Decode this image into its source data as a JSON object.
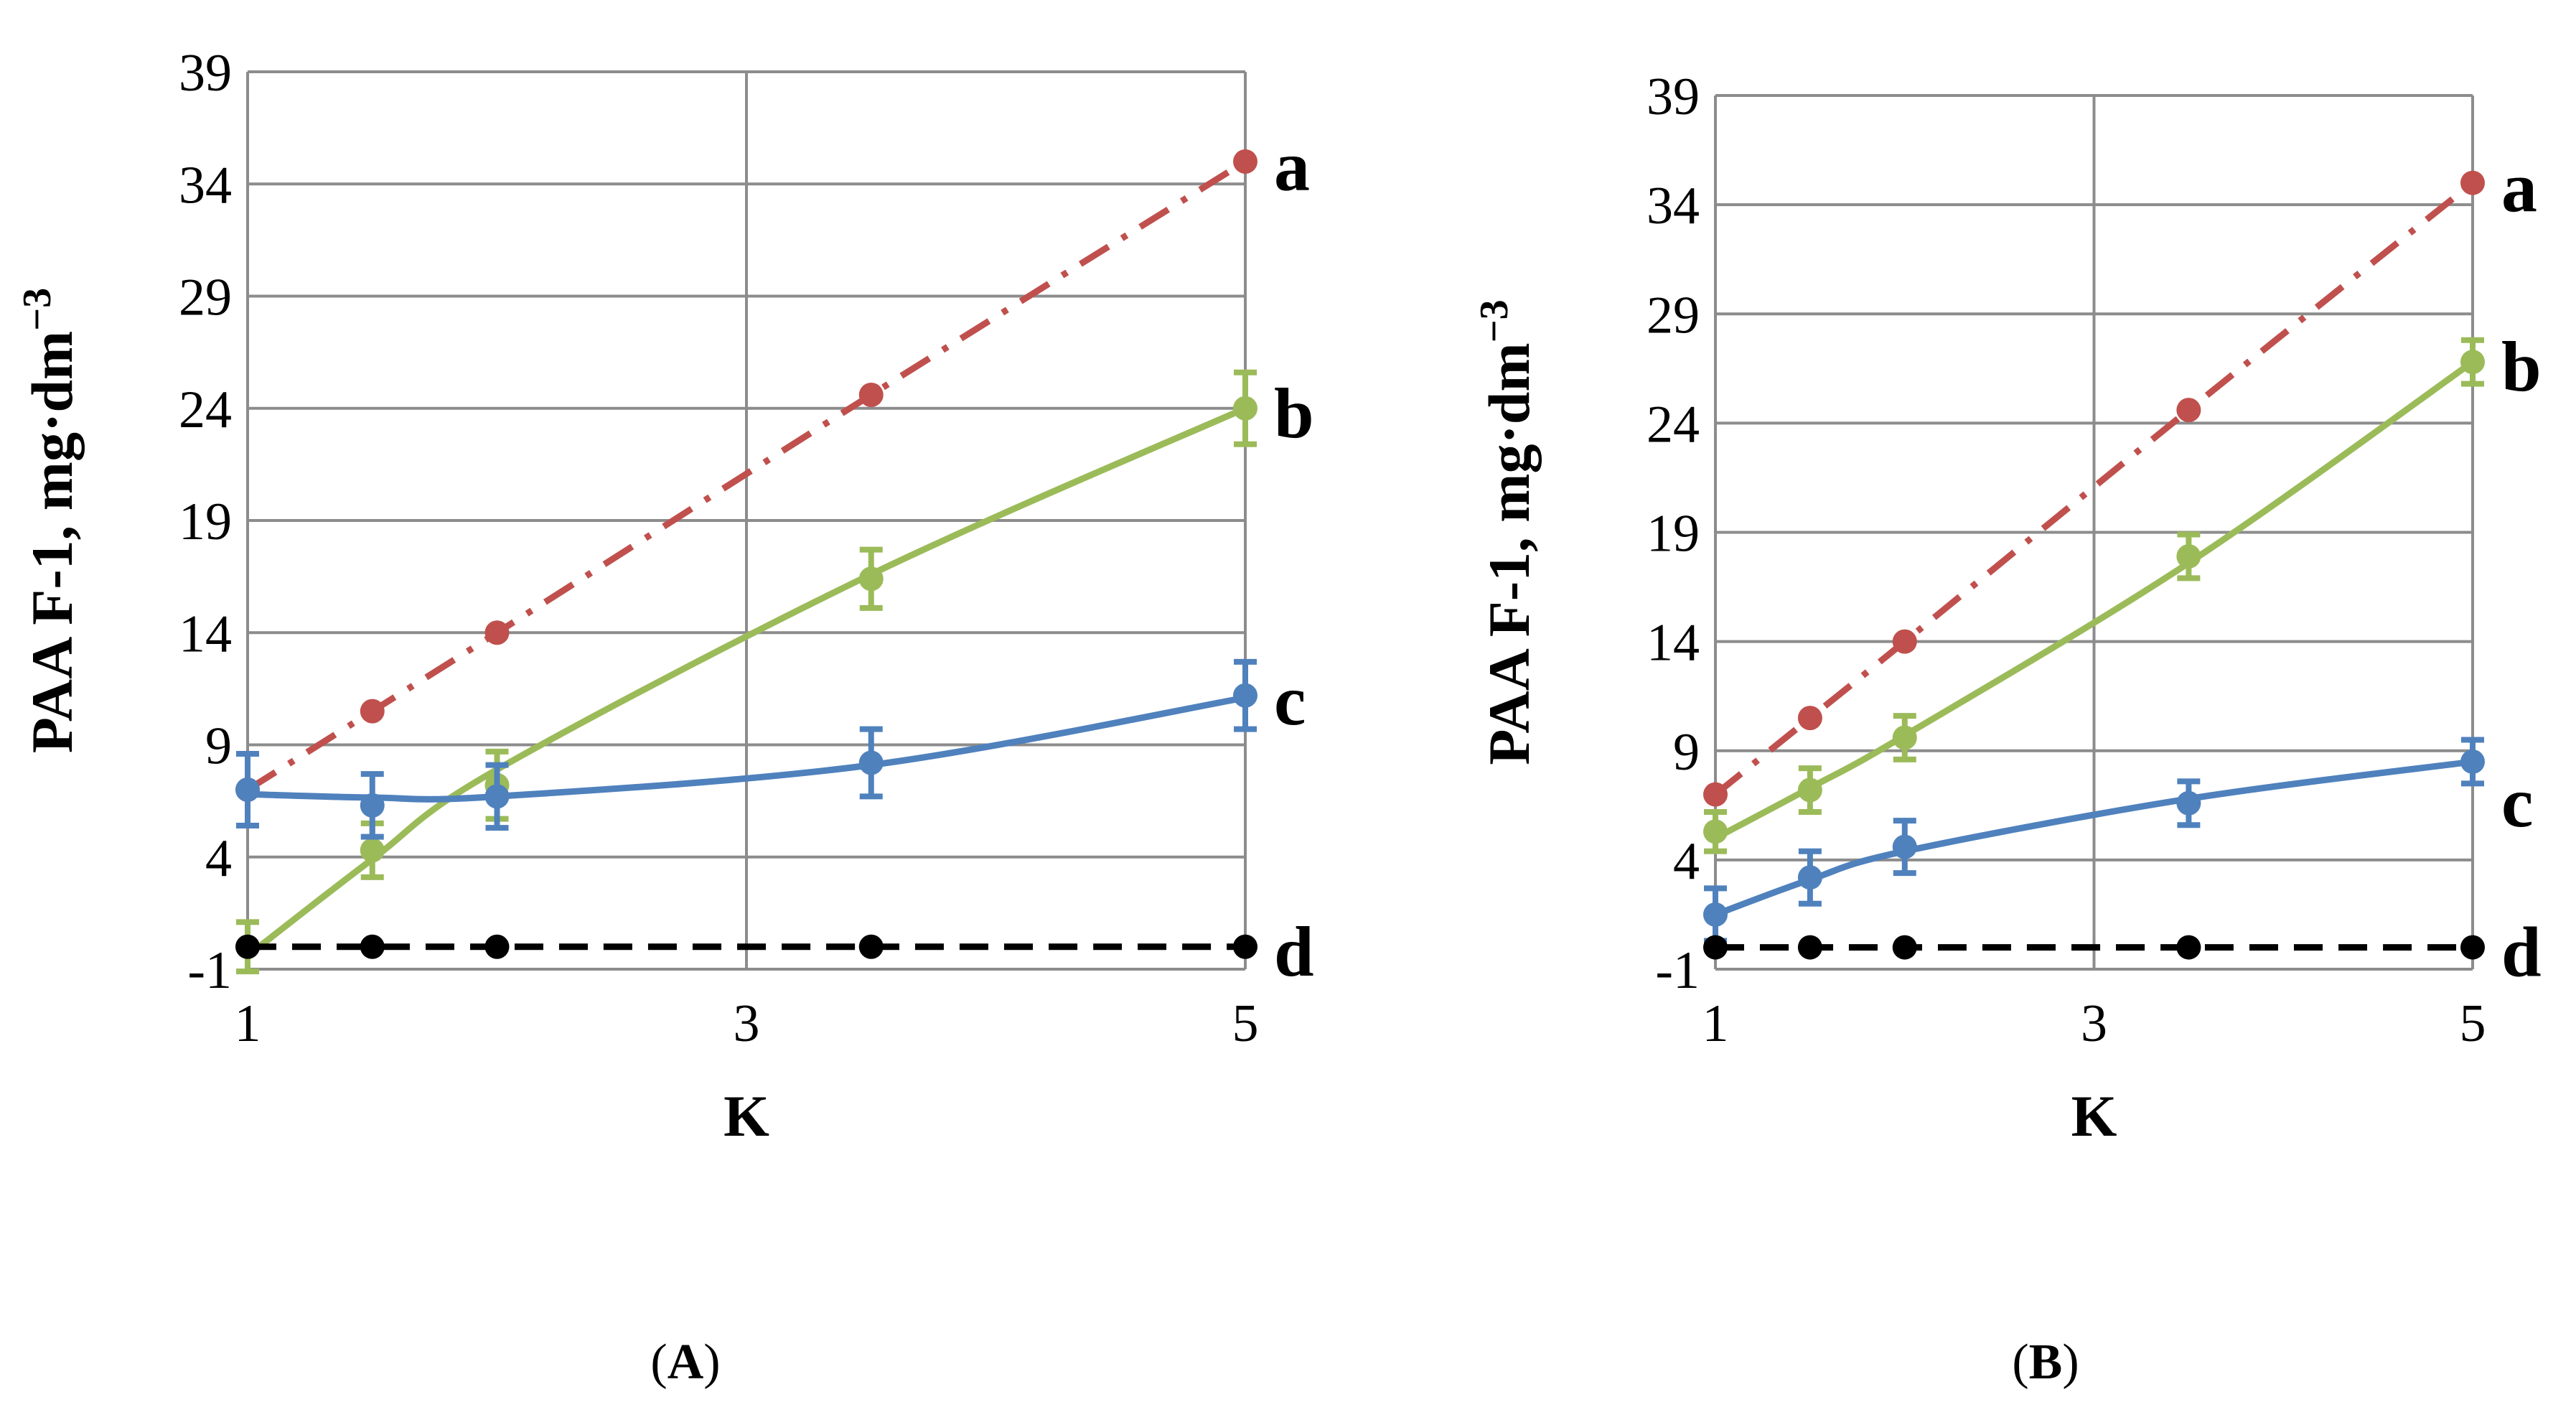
{
  "chart_data": [
    {
      "type": "line",
      "panel_label": "A",
      "xlabel": "K",
      "ylabel": "PAA F-1, mg·dm",
      "ylabel_superscript": "−3",
      "xlim": [
        1,
        5
      ],
      "ylim": [
        -1,
        39
      ],
      "xticks": [
        1,
        3,
        5
      ],
      "yticks": [
        -1,
        4,
        9,
        14,
        19,
        24,
        29,
        34,
        39
      ],
      "grid": true,
      "x": [
        1,
        1.5,
        2,
        3.5,
        5
      ],
      "series": [
        {
          "name": "a",
          "color": "#c0504d",
          "style": "dash-dot",
          "values": [
            7,
            10.5,
            14,
            24.6,
            35
          ],
          "errors": [
            0,
            0,
            0,
            0,
            0
          ],
          "fit": [
            7,
            10.5,
            14,
            24.6,
            35
          ]
        },
        {
          "name": "b",
          "color": "#9bbb59",
          "style": "solid",
          "values": [
            0,
            4.3,
            7.2,
            16.4,
            24
          ],
          "errors": [
            1.1,
            1.2,
            1.5,
            1.3,
            1.6
          ],
          "fit": [
            -0.4,
            3.9,
            7.9,
            16.6,
            24
          ]
        },
        {
          "name": "c",
          "color": "#4f81bd",
          "style": "solid",
          "values": [
            7,
            6.3,
            6.7,
            8.2,
            11.2
          ],
          "errors": [
            1.6,
            1.4,
            1.4,
            1.5,
            1.5
          ],
          "fit": [
            6.8,
            6.65,
            6.7,
            8.1,
            11.1
          ]
        },
        {
          "name": "d",
          "color": "#000000",
          "style": "dashed",
          "values": [
            0,
            0,
            0,
            0,
            0
          ],
          "errors": [
            0,
            0,
            0,
            0,
            0
          ],
          "fit": [
            0,
            0,
            0,
            0,
            0
          ]
        }
      ]
    },
    {
      "type": "line",
      "panel_label": "B",
      "xlabel": "K",
      "ylabel": "PAA F-1, mg·dm",
      "ylabel_superscript": "−3",
      "xlim": [
        1,
        5
      ],
      "ylim": [
        -1,
        39
      ],
      "xticks": [
        1,
        3,
        5
      ],
      "yticks": [
        -1,
        4,
        9,
        14,
        19,
        24,
        29,
        34,
        39
      ],
      "grid": true,
      "x": [
        1,
        1.5,
        2,
        3.5,
        5
      ],
      "series": [
        {
          "name": "a",
          "color": "#c0504d",
          "style": "dash-dot",
          "values": [
            7,
            10.5,
            14,
            24.6,
            35
          ],
          "errors": [
            0,
            0,
            0,
            0,
            0
          ],
          "fit": [
            7,
            10.5,
            14,
            24.6,
            35
          ]
        },
        {
          "name": "b",
          "color": "#9bbb59",
          "style": "solid",
          "values": [
            5.3,
            7.2,
            9.6,
            17.9,
            26.8
          ],
          "errors": [
            0.9,
            1,
            1,
            1,
            1
          ],
          "fit": [
            5,
            7.3,
            9.7,
            17.6,
            26.8
          ]
        },
        {
          "name": "c",
          "color": "#4f81bd",
          "style": "solid",
          "values": [
            1.5,
            3.2,
            4.6,
            6.6,
            8.5
          ],
          "errors": [
            1.2,
            1.2,
            1.2,
            1,
            1
          ],
          "fit": [
            1.5,
            3.1,
            4.4,
            6.8,
            8.5
          ]
        },
        {
          "name": "d",
          "color": "#000000",
          "style": "dashed",
          "values": [
            0,
            0,
            0,
            0,
            0
          ],
          "errors": [
            0,
            0,
            0,
            0,
            0
          ],
          "fit": [
            0,
            0,
            0,
            0,
            0
          ]
        }
      ]
    }
  ]
}
